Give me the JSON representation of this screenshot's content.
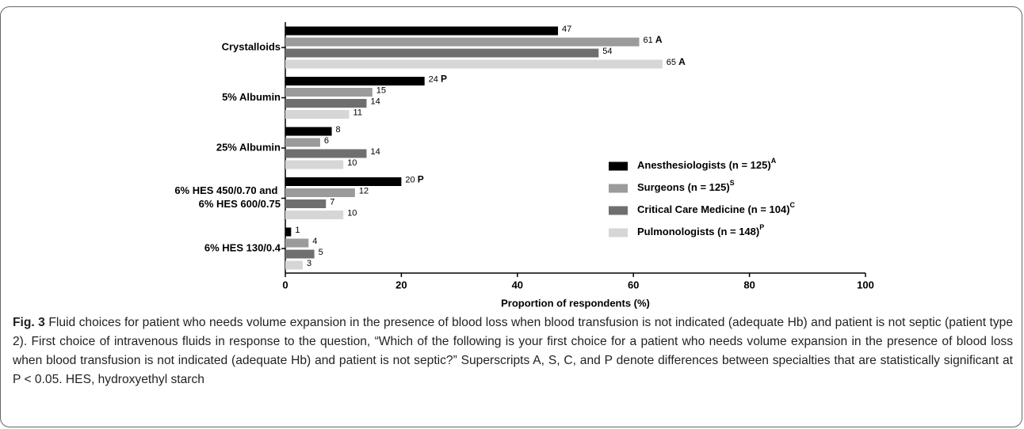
{
  "chart_data": {
    "type": "barh",
    "categories": [
      "Crystalloids",
      "5% Albumin",
      "25% Albumin",
      "6% HES 450/0.70 and 6% HES 600/0.75",
      "6% HES 130/0.4"
    ],
    "series": [
      {
        "name": "Anesthesiologists (n = 125)",
        "superscript": "A",
        "color": "#000000",
        "values": [
          47,
          24,
          8,
          20,
          1
        ],
        "value_labels": [
          "47",
          "24 P",
          "8",
          "20 P",
          "1"
        ]
      },
      {
        "name": "Surgeons (n = 125)",
        "superscript": "S",
        "color": "#9b9b9b",
        "values": [
          61,
          15,
          6,
          12,
          4
        ],
        "value_labels": [
          "61 A",
          "15",
          "6",
          "12",
          "4"
        ]
      },
      {
        "name": "Critical Care Medicine (n = 104)",
        "superscript": "C",
        "color": "#6f6f6f",
        "values": [
          54,
          14,
          14,
          7,
          5
        ],
        "value_labels": [
          "54",
          "14",
          "14",
          "7",
          "5"
        ]
      },
      {
        "name": "Pulmonologists (n = 148)",
        "superscript": "P",
        "color": "#d6d6d6",
        "values": [
          65,
          11,
          10,
          10,
          3
        ],
        "value_labels": [
          "65 A",
          "11",
          "10",
          "10",
          "3"
        ]
      }
    ],
    "xlim": [
      0,
      100
    ],
    "xticks": [
      0,
      20,
      40,
      60,
      80,
      100
    ],
    "xlabel": "Proportion of respondents (%)",
    "legend": "right"
  },
  "caption": {
    "label": "Fig. 3",
    "text": "Fluid choices for patient who needs volume expansion in the presence of blood loss when blood transfusion is not indicated (adequate Hb) and patient is not septic (patient type 2). First choice of intravenous fluids in response to the question, “Which of the following is your first choice for a patient who needs volume expansion in the presence of blood loss when blood transfusion is not indicated (adequate Hb) and patient is not septic?” Superscripts A, S, C, and P denote differences between specialties that are statistically significant at P < 0.05. HES, hydroxyethyl starch"
  }
}
